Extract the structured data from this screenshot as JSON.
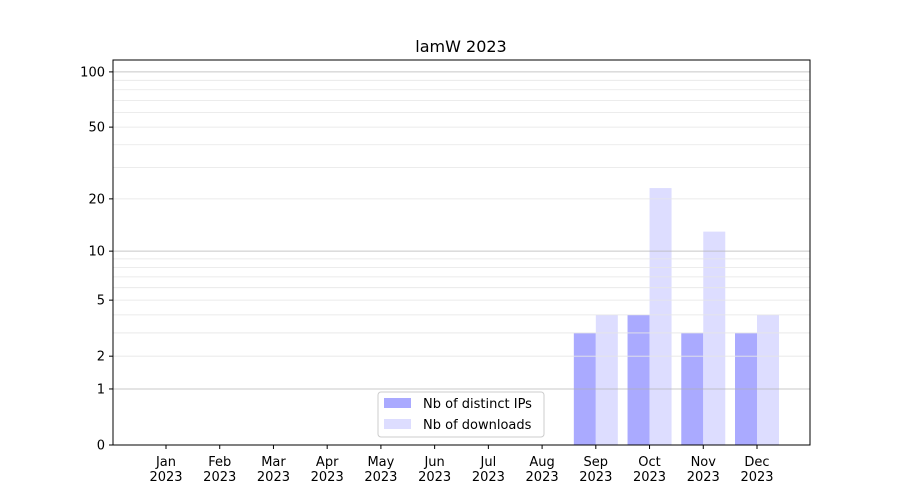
{
  "chart_data": {
    "type": "bar",
    "title": "lamW 2023",
    "xlabel": "",
    "ylabel": "",
    "yscale": "log(1+y)",
    "ylim": [
      0,
      116
    ],
    "yticks": [
      0,
      1,
      2,
      5,
      10,
      20,
      50,
      100
    ],
    "grid": true,
    "legend_position": "bottom-center",
    "categories": [
      "Jan\n2023",
      "Feb\n2023",
      "Mar\n2023",
      "Apr\n2023",
      "May\n2023",
      "Jun\n2023",
      "Jul\n2023",
      "Aug\n2023",
      "Sep\n2023",
      "Oct\n2023",
      "Nov\n2023",
      "Dec\n2023"
    ],
    "series": [
      {
        "name": "Nb of distinct IPs",
        "color": "#aaaaff",
        "values": [
          0,
          0,
          0,
          0,
          0,
          0,
          0,
          0,
          3,
          4,
          3,
          3
        ]
      },
      {
        "name": "Nb of downloads",
        "color": "#ddddff",
        "values": [
          0,
          0,
          0,
          0,
          0,
          0,
          0,
          0,
          4,
          23,
          13,
          4
        ]
      }
    ]
  }
}
